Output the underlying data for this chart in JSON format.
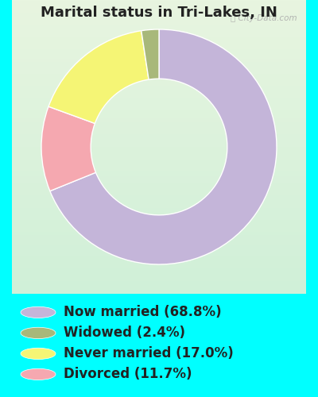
{
  "title": "Marital status in Tri-Lakes, IN",
  "categories": [
    "Now married",
    "Widowed",
    "Never married",
    "Divorced"
  ],
  "values": [
    68.8,
    2.4,
    17.0,
    11.7
  ],
  "colors": [
    "#c4b5d9",
    "#a8b87a",
    "#f5f575",
    "#f5a8b0"
  ],
  "legend_labels": [
    "Now married (68.8%)",
    "Widowed (2.4%)",
    "Never married (17.0%)",
    "Divorced (11.7%)"
  ],
  "outer_bg_color": "#00ffff",
  "chart_bg_top": "#e8f5e0",
  "chart_bg_bottom": "#d0f0d8",
  "title_fontsize": 13,
  "legend_fontsize": 12,
  "watermark": "City-Data.com",
  "start_angle": 90,
  "donut_width": 0.42
}
